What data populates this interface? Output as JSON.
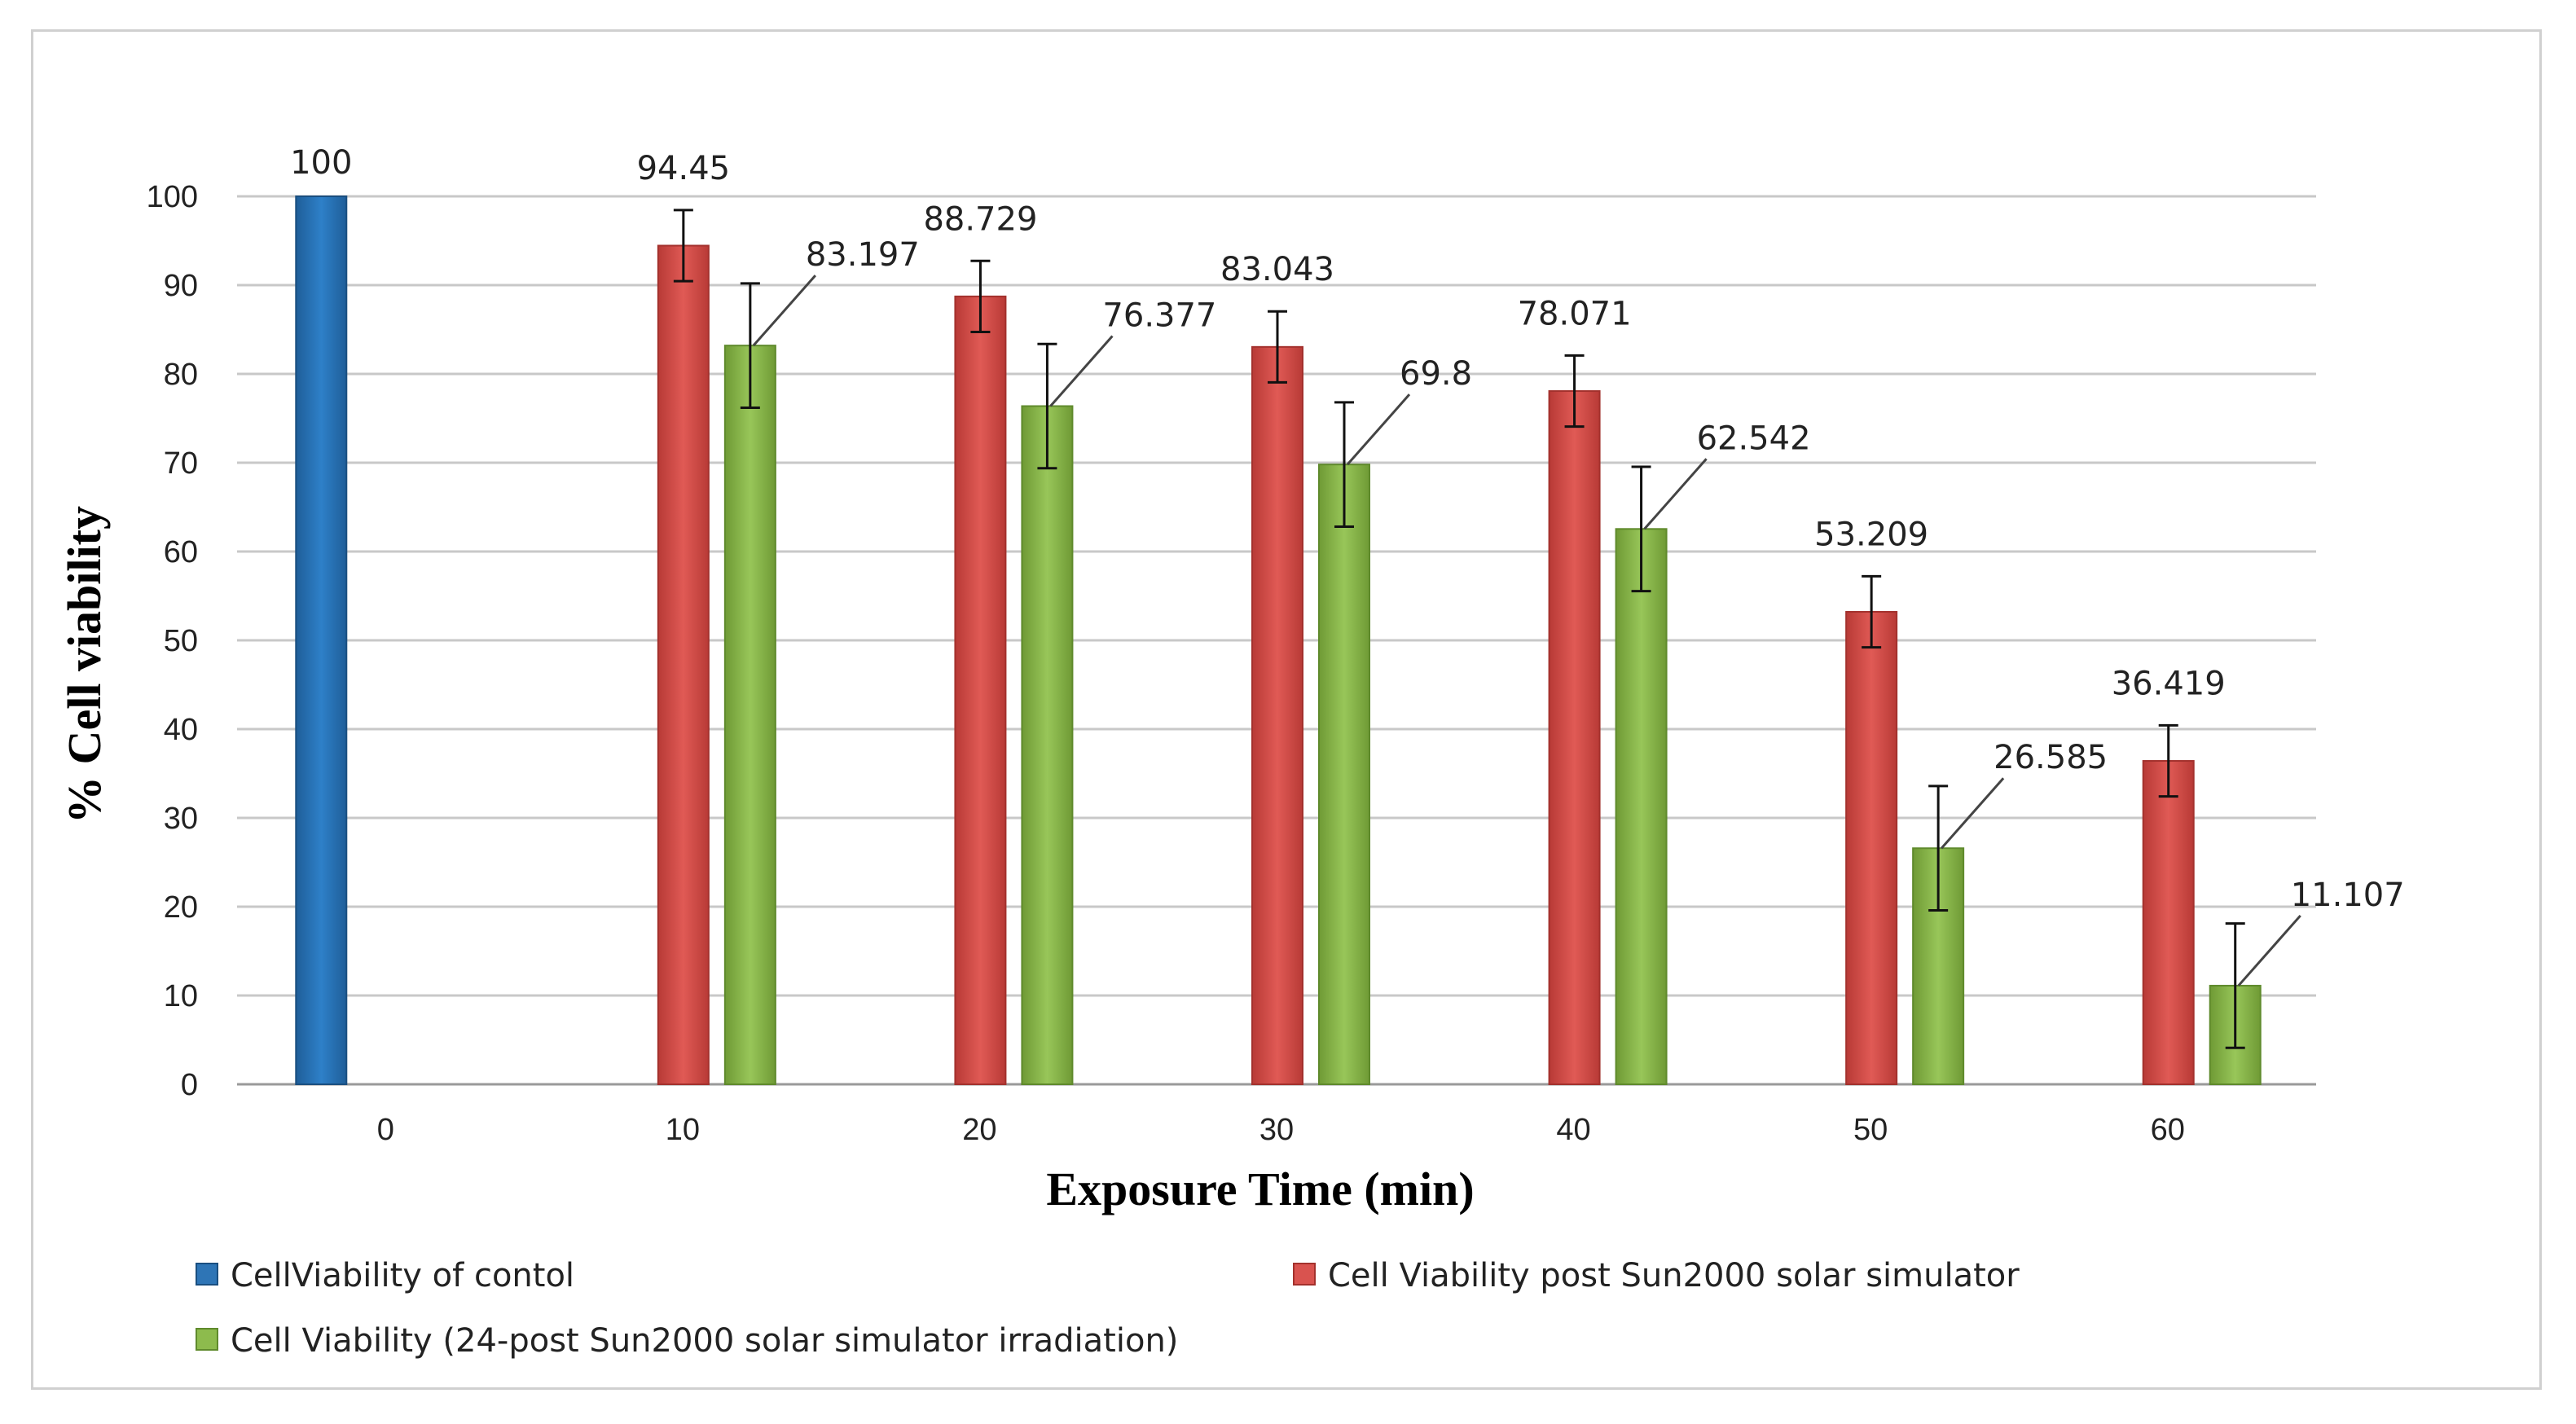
{
  "chart_data": {
    "type": "bar",
    "title": "",
    "xlabel": "Exposure Time (min)",
    "ylabel": "% Cell viability",
    "ylim": [
      0,
      100
    ],
    "yticks": [
      0,
      10,
      20,
      30,
      40,
      50,
      60,
      70,
      80,
      90,
      100
    ],
    "categories": [
      "0",
      "10",
      "20",
      "30",
      "40",
      "50",
      "60"
    ],
    "grid": true,
    "legend_position": "bottom",
    "series": [
      {
        "name": "CellViability of contol",
        "color": "#2e75b6",
        "values": [
          100,
          null,
          null,
          null,
          null,
          null,
          null
        ],
        "labels": [
          "100",
          null,
          null,
          null,
          null,
          null,
          null
        ],
        "errors": [
          null,
          null,
          null,
          null,
          null,
          null,
          null
        ]
      },
      {
        "name": "Cell Viability post Sun2000 solar simulator",
        "color": "#d9534f",
        "values": [
          null,
          94.45,
          88.729,
          83.043,
          78.071,
          53.209,
          36.419
        ],
        "labels": [
          null,
          "94.45",
          "88.729",
          "83.043",
          "78.071",
          "53.209",
          "36.419"
        ],
        "errors": [
          null,
          4.0,
          4.0,
          4.0,
          4.0,
          4.0,
          4.0
        ]
      },
      {
        "name": "Cell Viability (24-post Sun2000 solar simulator irradiation)",
        "color": "#8dbb4d",
        "values": [
          null,
          83.197,
          76.377,
          69.8,
          62.542,
          26.585,
          11.107
        ],
        "labels": [
          null,
          "83.197",
          "76.377",
          "69.8",
          "62.542",
          "26.585",
          "11.107"
        ],
        "errors": [
          null,
          7.0,
          7.0,
          7.0,
          7.0,
          7.0,
          7.0
        ]
      }
    ]
  }
}
